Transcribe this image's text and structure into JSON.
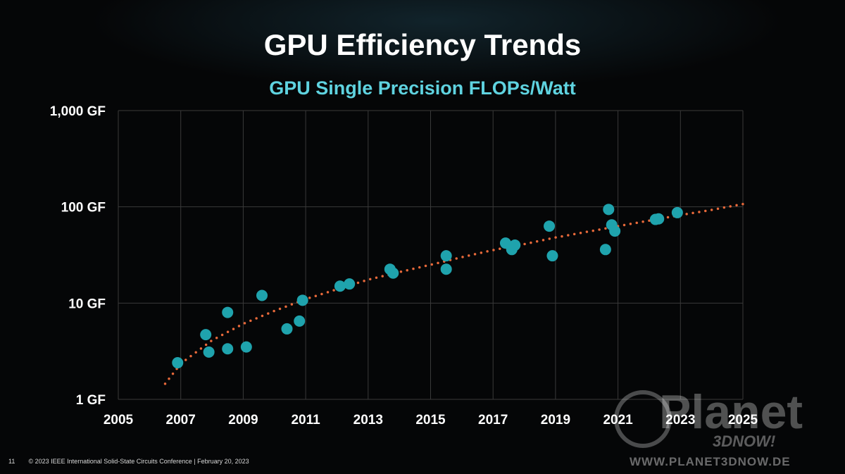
{
  "slide": {
    "title": "GPU Efficiency Trends",
    "subtitle": "GPU Single Precision FLOPs/Watt",
    "page_number": "11",
    "footer": "© 2023 IEEE International Solid-State Circuits Conference  |  February 20, 2023"
  },
  "watermark": {
    "brand": "Planet",
    "sub": "3DNOW!",
    "url": "WWW.PLANET3DNOW.DE"
  },
  "colors": {
    "point": "#1fa3ad",
    "trend": "#e8693a",
    "grid": "#3a3a3a",
    "text": "#ffffff"
  },
  "chart_data": {
    "type": "scatter",
    "title": "GPU Single Precision FLOPs/Watt",
    "xlim": [
      2005,
      2025
    ],
    "ylim": [
      1,
      1000
    ],
    "yscale": "log",
    "grid": true,
    "xticks": [
      2005,
      2007,
      2009,
      2011,
      2013,
      2015,
      2017,
      2019,
      2021,
      2023,
      2025
    ],
    "xtick_labels": [
      "2005",
      "2007",
      "2009",
      "2011",
      "2013",
      "2015",
      "2017",
      "2019",
      "2021",
      "2023",
      "2025"
    ],
    "yticks": [
      1,
      10,
      100,
      1000
    ],
    "ytick_labels": [
      "1 GF",
      "10 GF",
      "100 GF",
      "1,000 GF"
    ],
    "series": [
      {
        "points": [
          [
            2006.9,
            2.4
          ],
          [
            2007.8,
            4.7
          ],
          [
            2007.9,
            3.1
          ],
          [
            2008.5,
            3.35
          ],
          [
            2008.5,
            8.0
          ],
          [
            2009.1,
            3.5
          ],
          [
            2009.6,
            12.0
          ],
          [
            2010.4,
            5.4
          ],
          [
            2010.8,
            6.5
          ],
          [
            2010.9,
            10.7
          ],
          [
            2012.1,
            15.0
          ],
          [
            2012.4,
            15.8
          ],
          [
            2013.7,
            22.5
          ],
          [
            2013.8,
            20.5
          ],
          [
            2015.5,
            31.0
          ],
          [
            2015.5,
            22.5
          ],
          [
            2017.4,
            42.0
          ],
          [
            2017.6,
            36.0
          ],
          [
            2017.7,
            40.0
          ],
          [
            2018.8,
            63.0
          ],
          [
            2018.9,
            31.0
          ],
          [
            2020.6,
            36.0
          ],
          [
            2020.7,
            94.0
          ],
          [
            2020.8,
            65.0
          ],
          [
            2020.9,
            56.0
          ],
          [
            2022.2,
            74.0
          ],
          [
            2022.3,
            75.0
          ],
          [
            2022.9,
            87.0
          ]
        ]
      }
    ],
    "trendline": {
      "style": "dotted",
      "x_start": 2006.5,
      "x_end": 2025,
      "points": [
        [
          2006.5,
          1.45
        ],
        [
          2007.0,
          2.35
        ],
        [
          2008.0,
          4.1
        ],
        [
          2009.0,
          6.1
        ],
        [
          2010.0,
          8.3
        ],
        [
          2011.0,
          11.0
        ],
        [
          2012.0,
          13.9
        ],
        [
          2013.0,
          17.5
        ],
        [
          2014.0,
          21.0
        ],
        [
          2015.0,
          25.0
        ],
        [
          2016.0,
          30.0
        ],
        [
          2017.0,
          35.5
        ],
        [
          2018.0,
          41.0
        ],
        [
          2019.0,
          48.0
        ],
        [
          2020.0,
          55.0
        ],
        [
          2021.0,
          63.0
        ],
        [
          2022.0,
          72.0
        ],
        [
          2023.0,
          82.0
        ],
        [
          2024.0,
          93.0
        ],
        [
          2025.0,
          107.0
        ]
      ]
    }
  }
}
